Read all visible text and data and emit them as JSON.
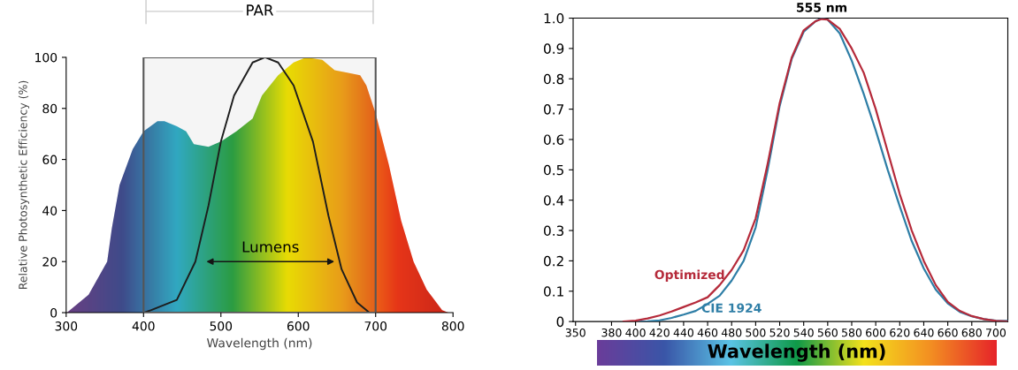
{
  "chart_data": [
    {
      "type": "area",
      "ylabel": "Relative Photosynthetic Efficiency (%)",
      "xlabel": "Wavelength (nm)",
      "xlim": [
        300,
        800
      ],
      "ylim": [
        0,
        100
      ],
      "xticks": [
        300,
        400,
        500,
        600,
        700,
        800
      ],
      "yticks": [
        0,
        20,
        40,
        60,
        80,
        100
      ],
      "grid": false,
      "legend": false,
      "series": [
        {
          "type": "area",
          "color": "#f2e600",
          "x": [
            301,
            329,
            353,
            359,
            369,
            386,
            400,
            418,
            427,
            443,
            455,
            465,
            484,
            500,
            520,
            541,
            553,
            574,
            594,
            610,
            631,
            647,
            663,
            680,
            688,
            700,
            717,
            733,
            749,
            766,
            786,
            794
          ],
          "values": [
            0,
            7,
            20,
            33,
            50,
            64,
            71,
            75,
            75,
            73,
            71,
            66,
            65,
            67,
            71,
            76,
            85,
            93,
            98,
            100,
            99,
            95,
            94,
            93,
            89,
            78,
            58,
            36,
            20,
            9,
            1,
            0
          ]
        },
        {
          "type": "line",
          "color": "#1a1a1a",
          "x": [
            400,
            410,
            443,
            467,
            484,
            500,
            517,
            541,
            557,
            574,
            594,
            619,
            639,
            656,
            676,
            692
          ],
          "values": [
            0,
            1,
            5,
            20,
            42,
            67,
            85,
            98,
            100,
            98,
            89,
            67,
            38,
            17,
            4,
            0
          ]
        }
      ],
      "bands": [
        {
          "axis": "x",
          "from": 400,
          "to": 700,
          "label": "PAR",
          "color": "#555555"
        }
      ],
      "annotations": [
        "Lumens"
      ]
    },
    {
      "type": "line",
      "xlabel": "Wavelength (nm)",
      "xlim": [
        348,
        710
      ],
      "ylim": [
        0,
        1
      ],
      "xticks": [
        350,
        380,
        400,
        420,
        440,
        460,
        480,
        500,
        520,
        540,
        560,
        580,
        600,
        620,
        640,
        660,
        680,
        700
      ],
      "yticks": [
        0,
        0.1,
        0.2,
        0.3,
        0.4,
        0.5,
        0.6,
        0.7,
        0.8,
        0.9,
        {
          "value": 1,
          "label": "1.0"
        }
      ],
      "grid": false,
      "legend": false,
      "annotations": [
        {
          "text": "555 nm",
          "x": 555,
          "y": 1
        }
      ],
      "series": [
        {
          "name": "CIE 1924",
          "color": "#2e7ea6",
          "x": [
            400,
            410,
            420,
            430,
            440,
            450,
            460,
            470,
            480,
            490,
            500,
            510,
            520,
            530,
            540,
            550,
            555,
            560,
            570,
            580,
            590,
            600,
            610,
            620,
            630,
            640,
            650,
            660,
            670,
            680,
            690,
            700,
            710
          ],
          "values": [
            0,
            0.001,
            0.004,
            0.012,
            0.023,
            0.035,
            0.058,
            0.085,
            0.135,
            0.2,
            0.31,
            0.5,
            0.71,
            0.865,
            0.955,
            0.99,
            1.0,
            0.995,
            0.95,
            0.86,
            0.75,
            0.63,
            0.5,
            0.38,
            0.265,
            0.175,
            0.105,
            0.06,
            0.032,
            0.017,
            0.008,
            0.003,
            0.002
          ]
        },
        {
          "name": "Optimized",
          "color": "#b52a3a",
          "x": [
            390,
            400,
            410,
            420,
            430,
            440,
            450,
            460,
            470,
            480,
            490,
            500,
            510,
            520,
            530,
            540,
            550,
            555,
            560,
            570,
            580,
            590,
            600,
            610,
            620,
            630,
            640,
            650,
            660,
            670,
            680,
            690,
            700,
            710
          ],
          "values": [
            0,
            0.003,
            0.01,
            0.02,
            0.033,
            0.048,
            0.063,
            0.08,
            0.12,
            0.17,
            0.235,
            0.34,
            0.52,
            0.72,
            0.87,
            0.96,
            0.99,
            0.997,
            0.995,
            0.965,
            0.9,
            0.82,
            0.7,
            0.56,
            0.42,
            0.3,
            0.2,
            0.12,
            0.065,
            0.035,
            0.018,
            0.008,
            0.002,
            0
          ]
        }
      ]
    }
  ]
}
